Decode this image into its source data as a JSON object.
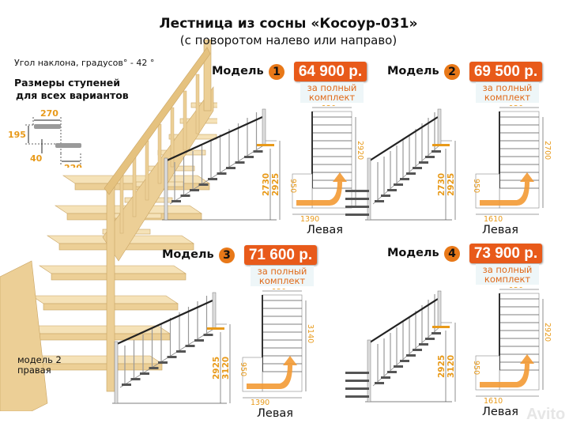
{
  "title": "Лестница из сосны «Косоур-031»",
  "subtitle": "(с поворотом налево или направо)",
  "angle_text": "Угол наклона, градусов° - 42 °",
  "step_sizes": {
    "heading_line1": "Размеры ступеней",
    "heading_line2": "для всех вариантов",
    "tread_depth": "270",
    "rise": "195",
    "thickness": "40",
    "overlap_tread": "220"
  },
  "photo_label_line1": "модель 2",
  "photo_label_line2": "правая",
  "colors": {
    "accent": "#e85a1a",
    "dimension": "#e89a1a",
    "wood": "#e8c98a"
  },
  "models": [
    {
      "label": "Модель",
      "number": "1",
      "price": "64 900 р.",
      "sub1": "за полный",
      "sub2": "комплект",
      "top_width": "950",
      "plan_length": "2920",
      "landing": "950",
      "plan_width": "1390",
      "height_a": "2730",
      "height_b": "2925",
      "side": "Левая"
    },
    {
      "label": "Модель",
      "number": "2",
      "price": "69 500 р.",
      "sub1": "за полный",
      "sub2": "комплект",
      "top_width": "950",
      "plan_length": "2700",
      "landing": "950",
      "plan_width": "1610",
      "height_a": "2730",
      "height_b": "2925",
      "side": "Левая"
    },
    {
      "label": "Модель",
      "number": "3",
      "price": "71 600 р.",
      "sub1": "за полный",
      "sub2": "комплект",
      "top_width": "950",
      "plan_length": "3140",
      "landing": "950",
      "plan_width": "1390",
      "height_a": "2925",
      "height_b": "3120",
      "side": "Левая"
    },
    {
      "label": "Модель",
      "number": "4",
      "price": "73 900 р.",
      "sub1": "за полный",
      "sub2": "комплект",
      "top_width": "950",
      "plan_length": "2920",
      "landing": "950",
      "plan_width": "1610",
      "height_a": "2925",
      "height_b": "3120",
      "side": "Левая"
    }
  ],
  "watermark": "Avito"
}
